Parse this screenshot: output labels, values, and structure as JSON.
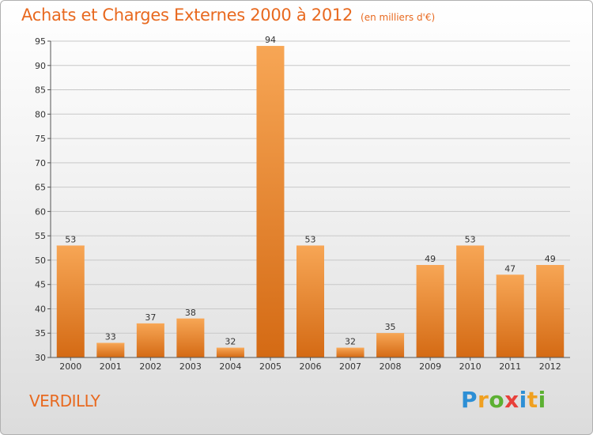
{
  "title": "Achats et Charges Externes 2000 à 2012",
  "subtitle": "(en milliers d'€)",
  "commune": "VERDILLY",
  "logo": {
    "letters": [
      "P",
      "r",
      "o",
      "x",
      "i",
      "t",
      "i"
    ],
    "colors": [
      "#2d8fd5",
      "#f0a020",
      "#5cb032",
      "#e8403a",
      "#2d8fd5",
      "#f0a020",
      "#5cb032"
    ]
  },
  "colors": {
    "accent": "#e8691f",
    "bar_top": "#f7a655",
    "bar_bottom": "#d46a14",
    "grid": "#c8c8c8",
    "axis": "#555555"
  },
  "chart_data": {
    "type": "bar",
    "categories": [
      "2000",
      "2001",
      "2002",
      "2003",
      "2004",
      "2005",
      "2006",
      "2007",
      "2008",
      "2009",
      "2010",
      "2011",
      "2012"
    ],
    "values": [
      53,
      33,
      37,
      38,
      32,
      94,
      53,
      32,
      35,
      49,
      53,
      47,
      49
    ],
    "value_labels": [
      "53",
      "33",
      "37",
      "38",
      "32",
      "94",
      "53",
      "32",
      "35",
      "49",
      "53",
      "47",
      "49"
    ],
    "yticks": [
      "30",
      "35",
      "40",
      "45",
      "50",
      "55",
      "60",
      "65",
      "70",
      "75",
      "80",
      "85",
      "90",
      "95"
    ],
    "ylim": [
      30,
      95
    ],
    "grid": true,
    "xlabel": "",
    "ylabel": ""
  }
}
